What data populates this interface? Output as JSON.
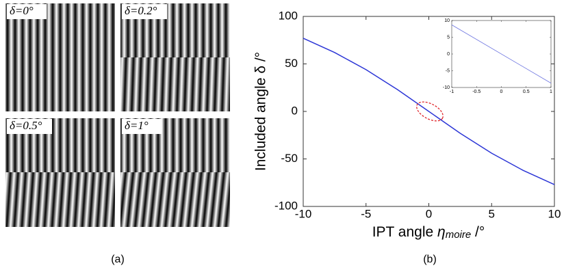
{
  "chart_data": [
    {
      "type": "line",
      "y_label": "Included angle δ /°",
      "x_label": {
        "text": "IPT angle ",
        "symbol": "η",
        "subscript": "moire",
        "unit": " /°"
      },
      "x": [
        -10,
        -7.5,
        -5,
        -2.5,
        0,
        2.5,
        5,
        7.5,
        10
      ],
      "values": [
        77,
        62,
        44,
        23,
        0,
        -23,
        -44,
        -62,
        -77
      ],
      "color": "#2b35d6",
      "xlim": [
        -10,
        10
      ],
      "xticks": [
        -10,
        -5,
        0,
        5,
        10
      ],
      "ylim": [
        -100,
        100
      ],
      "yticks": [
        -100,
        -50,
        0,
        50,
        100
      ]
    },
    {
      "type": "line",
      "x": [
        -1,
        1
      ],
      "values": [
        8.7,
        -8.7
      ],
      "color": "#6b73e0",
      "xlim": [
        -1,
        1
      ],
      "xticks": [
        -1,
        -0.5,
        0,
        0.5,
        1
      ],
      "ylim": [
        -10,
        10
      ],
      "yticks": [
        -10,
        -5,
        0,
        5,
        10
      ]
    }
  ],
  "fringe_labels": [
    "δ=0°",
    "δ=0.2°",
    "δ=0.5°",
    "δ=1°"
  ],
  "captions": [
    "(a)",
    "(b)"
  ]
}
